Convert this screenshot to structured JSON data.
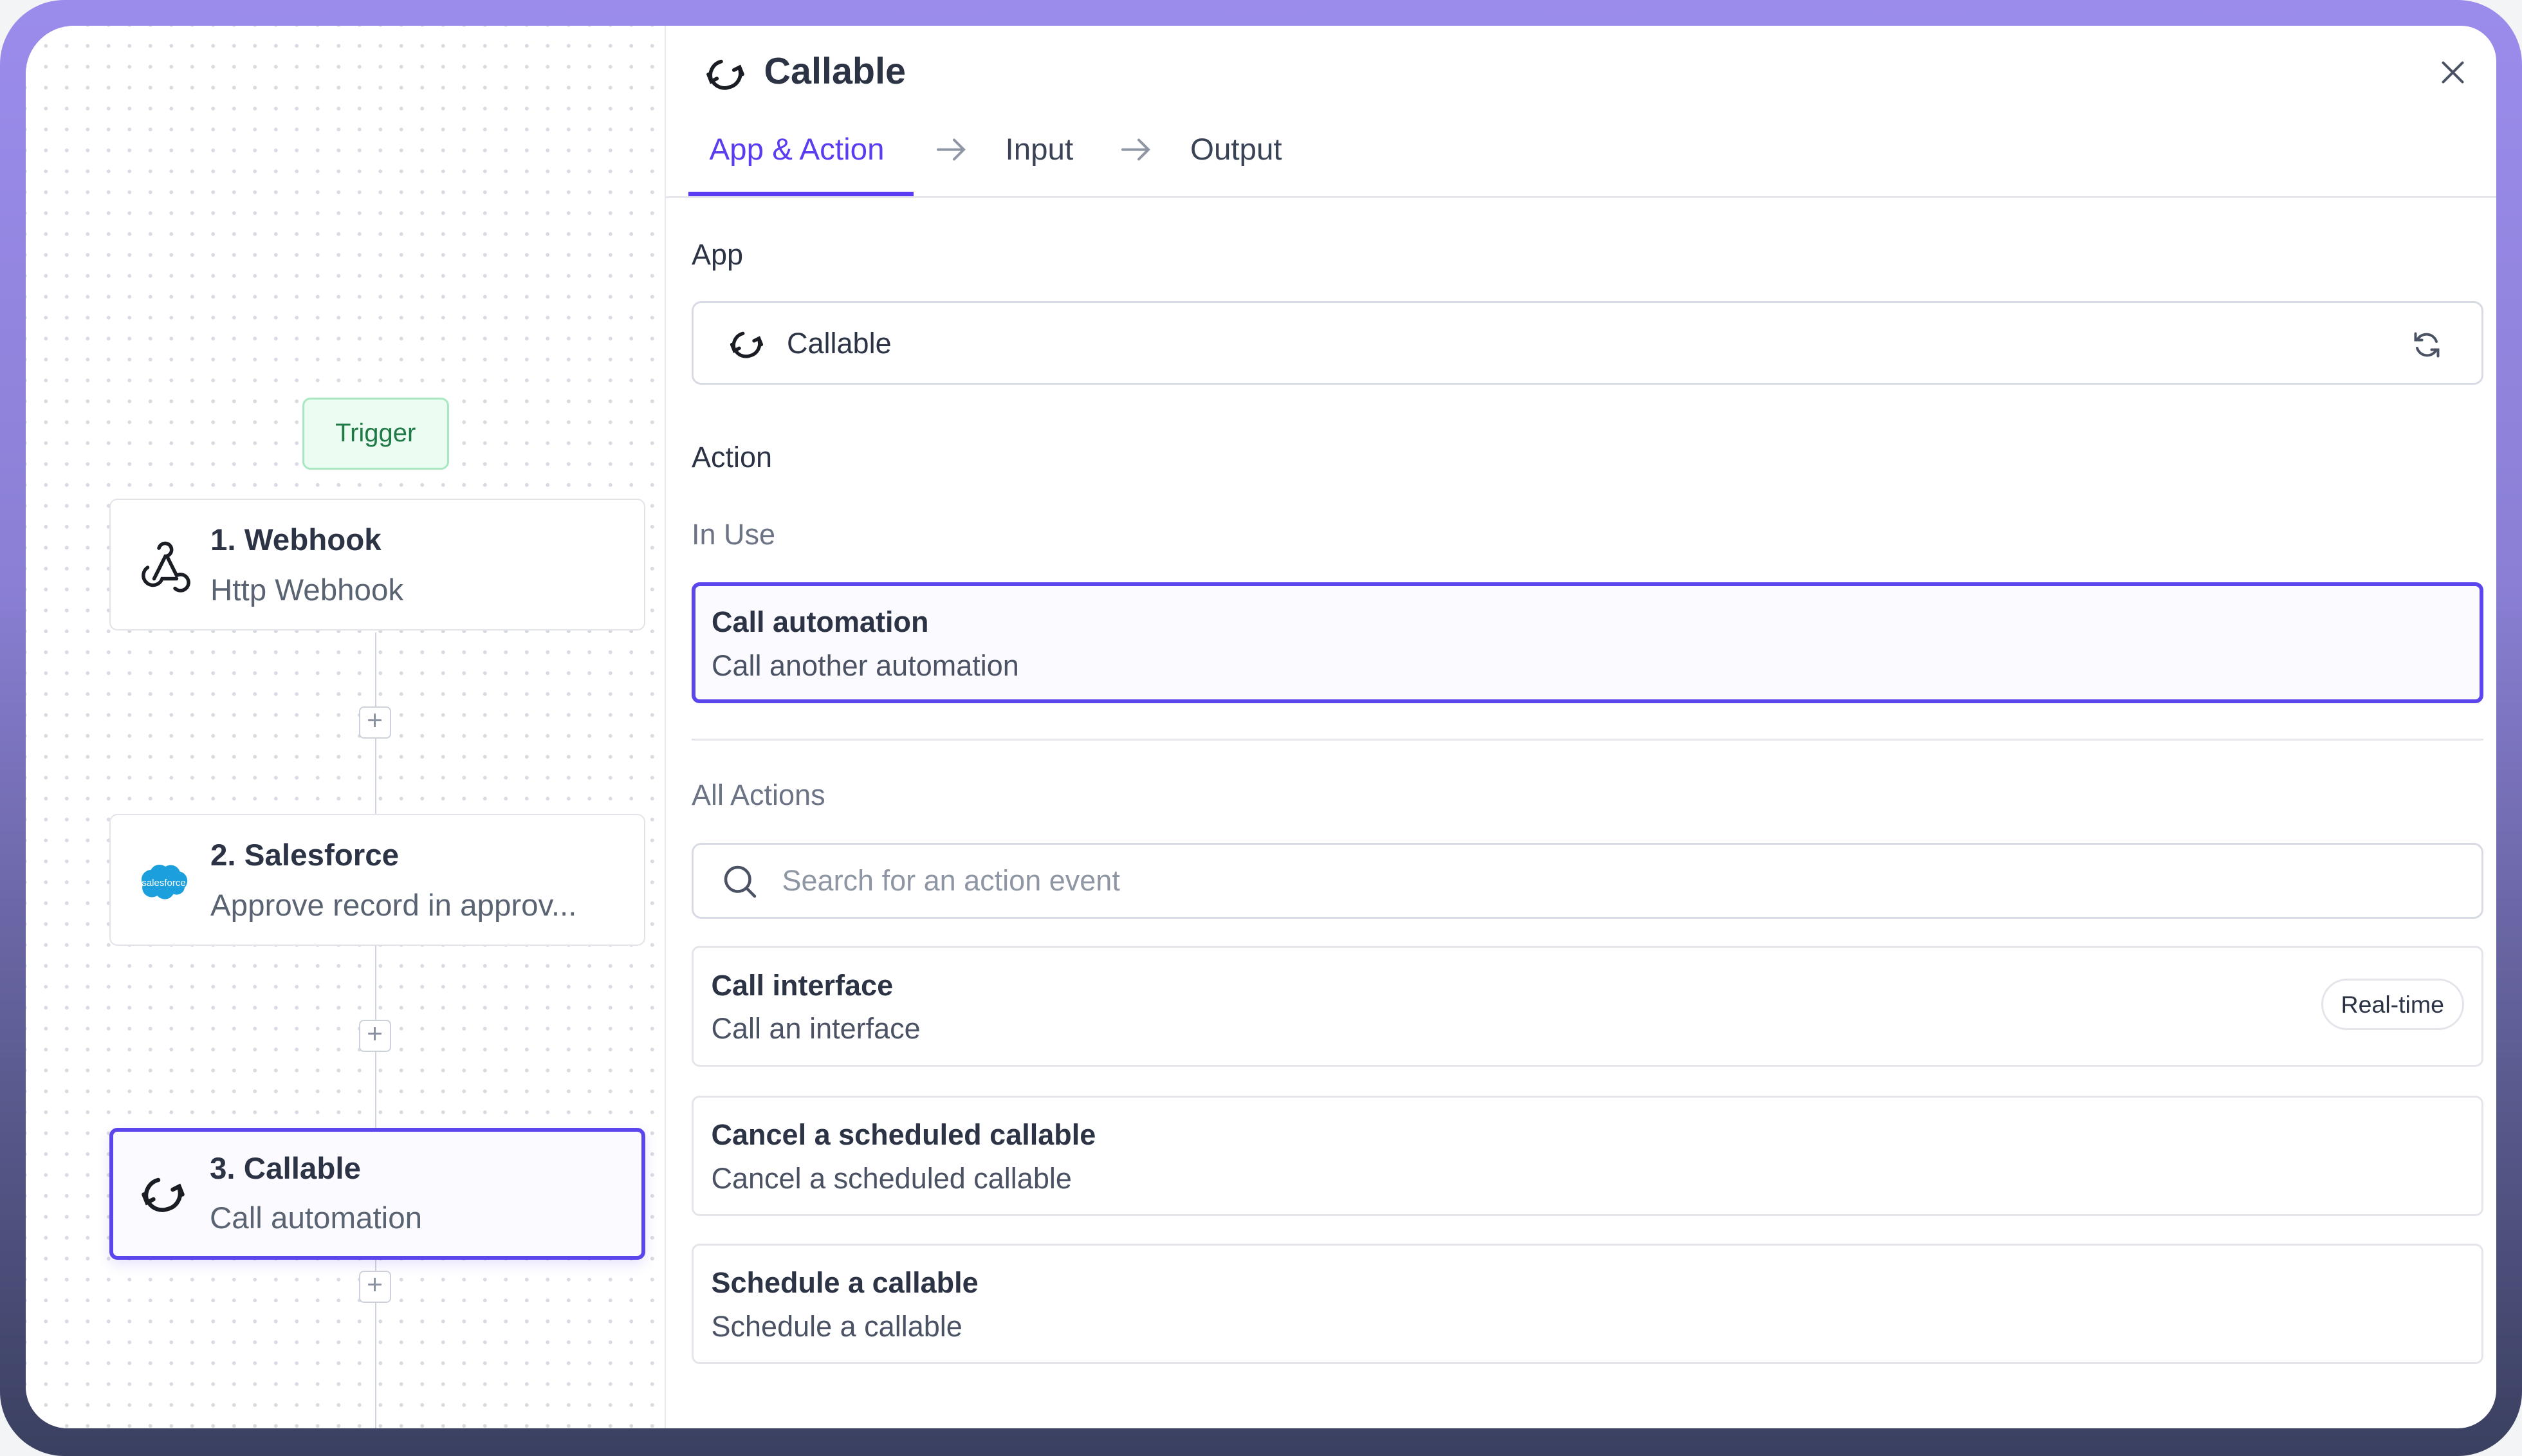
{
  "colors": {
    "accent": "#5b3cf0",
    "trigger_bg": "#edfcf3",
    "trigger_text": "#1f7a45",
    "salesforce": "#1ca0dd"
  },
  "canvas": {
    "trigger_label": "Trigger",
    "nodes": [
      {
        "title": "1. Webhook",
        "subtitle": "Http Webhook",
        "icon": "webhook-icon"
      },
      {
        "title": "2. Salesforce",
        "subtitle": "Approve record in approv...",
        "icon": "salesforce-logo",
        "logo_text": "salesforce"
      },
      {
        "title": "3. Callable",
        "subtitle": "Call automation",
        "icon": "sync-icon",
        "selected": true
      }
    ],
    "add_step_label": "+"
  },
  "panel": {
    "title": "Callable",
    "tabs": [
      {
        "label": "App & Action",
        "active": true
      },
      {
        "label": "Input"
      },
      {
        "label": "Output"
      }
    ],
    "app_label": "App",
    "app_value": "Callable",
    "action_label": "Action",
    "in_use_label": "In Use",
    "in_use": {
      "title": "Call automation",
      "subtitle": "Call another automation"
    },
    "all_actions_label": "All Actions",
    "search_placeholder": "Search for an action event",
    "actions": [
      {
        "title": "Call interface",
        "subtitle": "Call an interface",
        "badge": "Real-time"
      },
      {
        "title": "Cancel a scheduled callable",
        "subtitle": "Cancel a scheduled callable"
      },
      {
        "title": "Schedule a callable",
        "subtitle": "Schedule a callable"
      }
    ]
  }
}
